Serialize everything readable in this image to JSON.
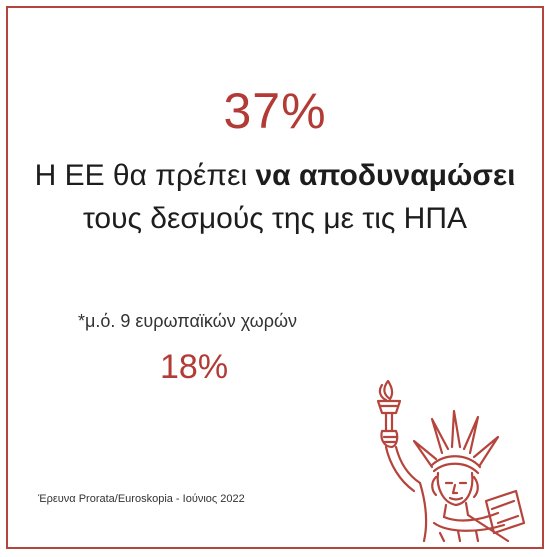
{
  "headline": {
    "percent": "37%",
    "line1_prefix": "Η ΕΕ θα πρέπει ",
    "line1_bold": "να αποδυναμώσει",
    "line2": "τους δεσμούς της με τις ΗΠΑ"
  },
  "average": {
    "label": "*μ.ό. 9 ευρωπαϊκών χωρών",
    "percent": "18%"
  },
  "source": "Έρευνα Prorata/Euroskopia - Ιούνιος 2022",
  "colors": {
    "accent": "#b23b36",
    "border": "#b5443c",
    "text": "#1d1d1d"
  },
  "icons": {
    "illustration": "statue-of-liberty-icon"
  }
}
